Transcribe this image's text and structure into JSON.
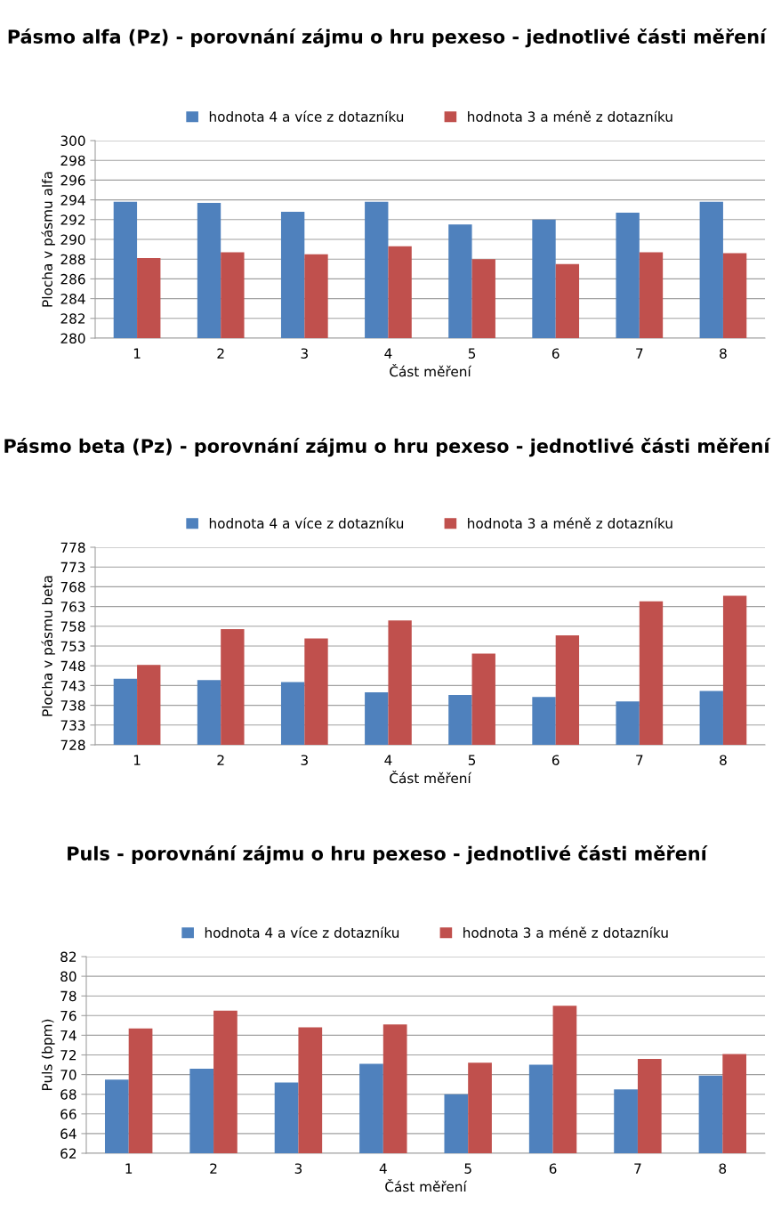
{
  "chart_data": [
    {
      "type": "bar",
      "title": "Pásmo alfa (Pz) - porovnání zájmu o hru pexeso - jednotlivé části měření",
      "xlabel": "Část měření",
      "ylabel": "Plocha v pásmu alfa",
      "categories": [
        "1",
        "2",
        "3",
        "4",
        "5",
        "6",
        "7",
        "8"
      ],
      "series": [
        {
          "name": "hodnota 4 a více z dotazníku",
          "color": "#4f81bd",
          "values": [
            293.8,
            293.7,
            292.8,
            293.8,
            291.5,
            292.0,
            292.7,
            293.8
          ]
        },
        {
          "name": "hodnota 3 a méně z dotazníku",
          "color": "#c0504d",
          "values": [
            288.1,
            288.7,
            288.5,
            289.3,
            288.0,
            287.5,
            288.7,
            288.6
          ]
        }
      ],
      "ylim": [
        280,
        300
      ],
      "yticks": [
        280,
        282,
        284,
        286,
        288,
        290,
        292,
        294,
        296,
        298,
        300
      ],
      "grid": "y",
      "legend": "top"
    },
    {
      "type": "bar",
      "title": "Pásmo beta (Pz) - porovnání zájmu o hru pexeso - jednotlivé části měření",
      "xlabel": "Část měření",
      "ylabel": "Plocha v pásmu beta",
      "categories": [
        "1",
        "2",
        "3",
        "4",
        "5",
        "6",
        "7",
        "8"
      ],
      "series": [
        {
          "name": "hodnota 4 a více z dotazníku",
          "color": "#4f81bd",
          "values": [
            744.7,
            744.4,
            743.9,
            741.3,
            740.6,
            740.1,
            739.0,
            741.6
          ]
        },
        {
          "name": "hodnota 3 a méně z dotazníku",
          "color": "#c0504d",
          "values": [
            748.2,
            757.3,
            754.9,
            759.5,
            751.1,
            755.7,
            764.3,
            765.7
          ]
        }
      ],
      "ylim": [
        728,
        778
      ],
      "yticks": [
        728,
        733,
        738,
        743,
        748,
        753,
        758,
        763,
        768,
        773,
        778
      ],
      "grid": "y",
      "legend": "top"
    },
    {
      "type": "bar",
      "title": "Puls - porovnání zájmu o hru pexeso - jednotlivé části měření",
      "xlabel": "Část měření",
      "ylabel": "Puls (bpm)",
      "categories": [
        "1",
        "2",
        "3",
        "4",
        "5",
        "6",
        "7",
        "8"
      ],
      "series": [
        {
          "name": "hodnota 4 a více z dotazníku",
          "color": "#4f81bd",
          "values": [
            69.5,
            70.6,
            69.2,
            71.1,
            68.0,
            71.0,
            68.5,
            69.9
          ]
        },
        {
          "name": "hodnota 3 a méně z dotazníku",
          "color": "#c0504d",
          "values": [
            74.7,
            76.5,
            74.8,
            75.1,
            71.2,
            77.0,
            71.6,
            72.1
          ]
        }
      ],
      "ylim": [
        62,
        82
      ],
      "yticks": [
        62,
        64,
        66,
        68,
        70,
        72,
        74,
        76,
        78,
        80,
        82
      ],
      "grid": "y",
      "legend": "top"
    }
  ]
}
